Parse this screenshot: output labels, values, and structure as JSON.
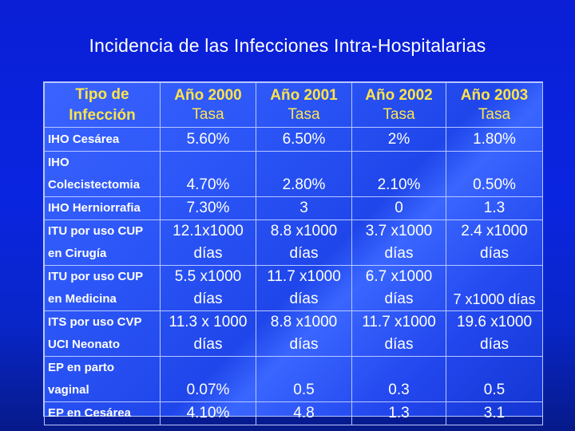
{
  "title": "Incidencia de las Infecciones Intra-Hospitalarias",
  "table": {
    "corner": [
      "Tipo de",
      "Infección"
    ],
    "years": [
      {
        "label": "Año 2000",
        "sub": "Tasa"
      },
      {
        "label": "Año 2001",
        "sub": "Tasa"
      },
      {
        "label": "Año 2002",
        "sub": "Tasa"
      },
      {
        "label": "Año 2003",
        "sub": "Tasa"
      }
    ],
    "rows": [
      {
        "label": [
          "IHO Cesárea"
        ],
        "values": [
          "5.60%",
          "6.50%",
          "2%",
          "1.80%"
        ]
      },
      {
        "label": [
          "IHO",
          "Colecistectomia"
        ],
        "values": [
          "4.70%",
          "2.80%",
          "2.10%",
          "0.50%"
        ]
      },
      {
        "label": [
          "IHO Herniorrafia"
        ],
        "values": [
          "7.30%",
          "3",
          "0",
          "1.3"
        ]
      },
      {
        "label": [
          "ITU por uso CUP",
          "en Cirugía"
        ],
        "values": [
          [
            "12.1x1000",
            "días"
          ],
          [
            "8.8 x1000",
            "días"
          ],
          [
            "3.7 x1000",
            "días"
          ],
          [
            "2.4 x1000",
            "días"
          ]
        ]
      },
      {
        "label": [
          "ITU por uso CUP",
          "en Medicina"
        ],
        "values": [
          [
            "5.5 x1000",
            "días"
          ],
          [
            "11.7 x1000",
            "días"
          ],
          [
            "6.7 x1000",
            "días"
          ],
          [
            "",
            "7 x1000 días"
          ]
        ]
      },
      {
        "label": [
          "ITS por uso CVP",
          "UCI Neonato"
        ],
        "values": [
          [
            "11.3 x 1000",
            "días"
          ],
          [
            "8.8 x1000",
            "días"
          ],
          [
            "11.7 x1000",
            "días"
          ],
          [
            "19.6 x1000",
            "días"
          ]
        ]
      },
      {
        "label": [
          "EP en parto",
          "vaginal"
        ],
        "values": [
          [
            "",
            "0.07%"
          ],
          [
            "",
            "0.5"
          ],
          [
            "",
            "0.3"
          ],
          [
            "",
            "0.5"
          ]
        ]
      },
      {
        "label": [
          "EP en Cesárea"
        ],
        "values": [
          "4.10%",
          "4.8",
          "1.3",
          "3.1"
        ]
      }
    ]
  }
}
